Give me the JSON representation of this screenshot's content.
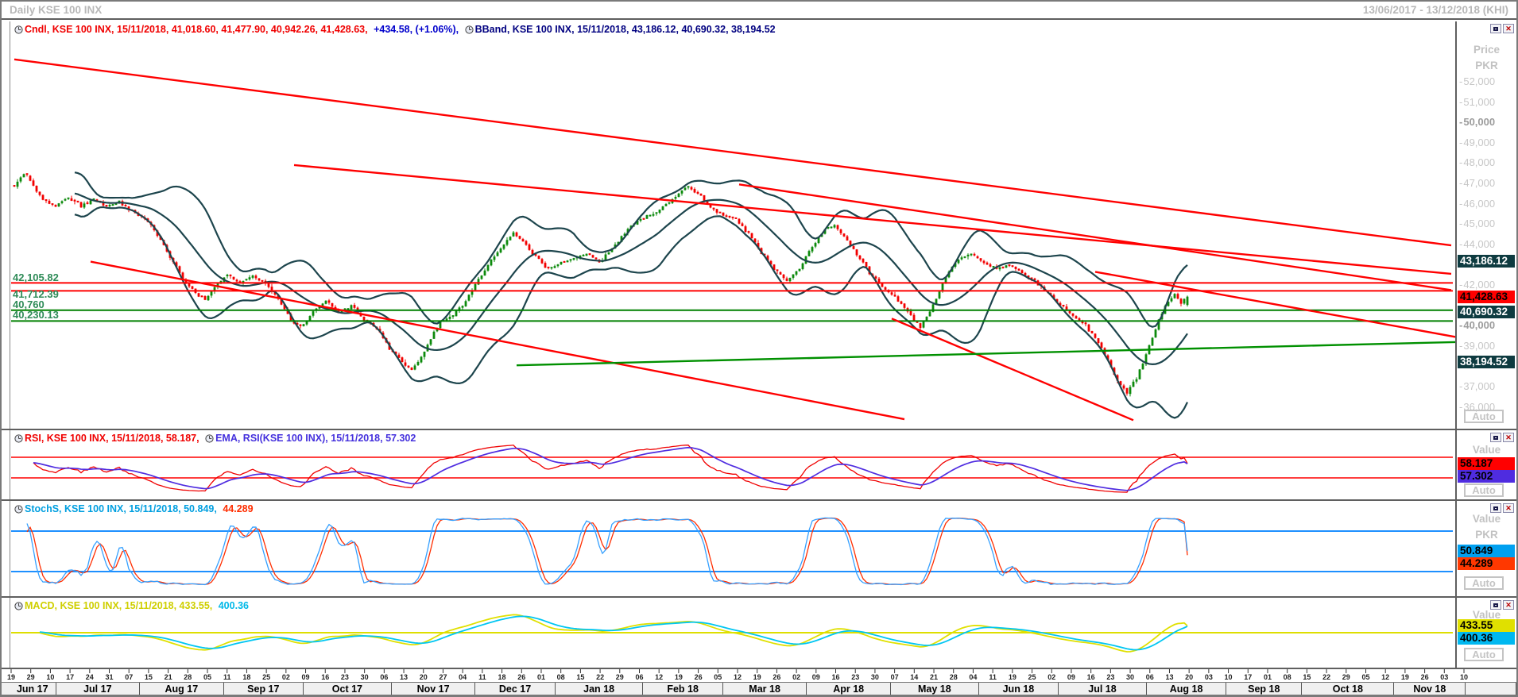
{
  "window": {
    "title": "Daily KSE 100 INX",
    "date_range": "13/06/2017 - 13/12/2018 (KHI)",
    "auto_label": "Auto"
  },
  "main_panel": {
    "legend": {
      "cndl": "Cndl, KSE 100 INX, 15/11/2018, 41,018.60, 41,477.90, 40,942.26, 41,428.63,",
      "change": "+434.58, (+1.06%),",
      "bband": "BBand, KSE 100 INX, 15/11/2018, 43,186.12, 40,690.32, 38,194.52"
    },
    "axis_header_line1": "Price",
    "axis_header_line2": "PKR",
    "ticks": [
      {
        "price": 52000,
        "label": "52,000"
      },
      {
        "price": 51000,
        "label": "51,000"
      },
      {
        "price": 50000,
        "label": "50,000",
        "bold": true
      },
      {
        "price": 49000,
        "label": "49,000"
      },
      {
        "price": 48000,
        "label": "48,000"
      },
      {
        "price": 47000,
        "label": "47,000"
      },
      {
        "price": 46000,
        "label": "46,000"
      },
      {
        "price": 45000,
        "label": "45,000"
      },
      {
        "price": 44000,
        "label": "44,000"
      },
      {
        "price": 42000,
        "label": "42,000"
      },
      {
        "price": 40000,
        "label": "40,000",
        "bold": true
      },
      {
        "price": 39000,
        "label": "39,000"
      },
      {
        "price": 37000,
        "label": "37,000"
      },
      {
        "price": 36000,
        "label": "36,000"
      }
    ],
    "value_boxes": [
      {
        "value": "43,186.12",
        "price": 43186.12,
        "bg": "#0e3b40",
        "fg": "#ffffff"
      },
      {
        "value": "41,428.63",
        "price": 41428.63,
        "bg": "#ff0000",
        "fg": "#000000"
      },
      {
        "value": "40,690.32",
        "price": 40690.32,
        "bg": "#0e3b40",
        "fg": "#ffffff"
      },
      {
        "value": "38,194.52",
        "price": 38194.52,
        "bg": "#0e3b40",
        "fg": "#ffffff"
      }
    ]
  },
  "rsi_panel": {
    "legend": {
      "rsi": "RSI, KSE 100 INX, 15/11/2018, 58.187,",
      "ema": "EMA, RSI(KSE 100 INX), 15/11/2018, 57.302"
    },
    "value_header": "Value",
    "boxes": [
      {
        "value": "58.187",
        "bg": "#ff0000",
        "fg": "#000000"
      },
      {
        "value": "57.302",
        "bg": "#4f2ce0",
        "fg": "#000000"
      }
    ]
  },
  "stoch_panel": {
    "legend": {
      "main": "StochS, KSE 100 INX, 15/11/2018, 50.849,",
      "d": "44.289"
    },
    "value_header": "Value",
    "value_header2": "PKR",
    "boxes": [
      {
        "value": "50.849",
        "bg": "#00a0f0",
        "fg": "#000000"
      },
      {
        "value": "44.289",
        "bg": "#ff3800",
        "fg": "#000000"
      }
    ]
  },
  "macd_panel": {
    "legend": {
      "macd": "MACD, KSE 100 INX, 15/11/2018, 433.55,",
      "signal": "400.36"
    },
    "value_header": "Value",
    "boxes": [
      {
        "value": "433.55",
        "bg": "#e0e000",
        "fg": "#000000"
      },
      {
        "value": "400.36",
        "bg": "#00b8f0",
        "fg": "#000000"
      }
    ]
  },
  "x_axis": {
    "day_ticks": [
      "19",
      "29",
      "10",
      "17",
      "24",
      "31",
      "07",
      "15",
      "21",
      "28",
      "05",
      "11",
      "18",
      "25",
      "02",
      "09",
      "16",
      "23",
      "30",
      "06",
      "13",
      "20",
      "27",
      "04",
      "11",
      "18",
      "26",
      "01",
      "08",
      "15",
      "22",
      "29",
      "06",
      "12",
      "19",
      "26",
      "05",
      "12",
      "19",
      "26",
      "02",
      "09",
      "16",
      "23",
      "30",
      "07",
      "14",
      "21",
      "28",
      "04",
      "11",
      "19",
      "25",
      "02",
      "09",
      "16",
      "23",
      "30",
      "06",
      "13",
      "20",
      "03",
      "10",
      "17",
      "01",
      "08",
      "15",
      "22",
      "29",
      "05",
      "12",
      "19",
      "26",
      "03",
      "10"
    ],
    "months": [
      {
        "label": "Jun 17",
        "weight": 0.55
      },
      {
        "label": "Jul 17",
        "weight": 1
      },
      {
        "label": "Aug 17",
        "weight": 1
      },
      {
        "label": "Sep 17",
        "weight": 0.95
      },
      {
        "label": "Oct 17",
        "weight": 1.05
      },
      {
        "label": "Nov 17",
        "weight": 1
      },
      {
        "label": "Dec 17",
        "weight": 0.95
      },
      {
        "label": "Jan 18",
        "weight": 1.05
      },
      {
        "label": "Feb 18",
        "weight": 0.95
      },
      {
        "label": "Mar 18",
        "weight": 1
      },
      {
        "label": "Apr 18",
        "weight": 1
      },
      {
        "label": "May 18",
        "weight": 1.05
      },
      {
        "label": "Jun 18",
        "weight": 0.95
      },
      {
        "label": "Jul 18",
        "weight": 1.05
      },
      {
        "label": "Aug 18",
        "weight": 0.95
      },
      {
        "label": "Sep 18",
        "weight": 0.9
      },
      {
        "label": "Oct 18",
        "weight": 1.1
      },
      {
        "label": "Nov 18",
        "weight": 0.85
      },
      {
        "label": "",
        "weight": 0.6
      }
    ]
  },
  "chart_data": {
    "type": "candlestick",
    "title": "Daily KSE 100 INX",
    "instrument": "KSE 100 INX",
    "date": "15/11/2018",
    "period_shown": "13/06/2017 - 13/12/2018",
    "price_axis": {
      "min": 35050,
      "max": 54890,
      "tick_interval": 1000,
      "unit": "PKR"
    },
    "num_candles": 370,
    "last_candle": {
      "open": 41018.6,
      "high": 41477.9,
      "low": 40942.26,
      "close": 41428.63,
      "change": 434.58,
      "change_pct": 1.06
    },
    "bollinger": {
      "period": 20,
      "stdev": 2,
      "upper_last": 43186.12,
      "middle_last": 40690.32,
      "lower_last": 38194.52
    },
    "close_anchors": [
      [
        0,
        46900
      ],
      [
        3,
        47500
      ],
      [
        6,
        46900
      ],
      [
        9,
        46200
      ],
      [
        13,
        45900
      ],
      [
        17,
        46300
      ],
      [
        21,
        45900
      ],
      [
        25,
        46200
      ],
      [
        29,
        45800
      ],
      [
        33,
        46100
      ],
      [
        37,
        45600
      ],
      [
        41,
        45300
      ],
      [
        45,
        44500
      ],
      [
        49,
        43400
      ],
      [
        53,
        42300
      ],
      [
        57,
        41600
      ],
      [
        60,
        41300
      ],
      [
        63,
        41900
      ],
      [
        67,
        42500
      ],
      [
        71,
        42100
      ],
      [
        75,
        42500
      ],
      [
        79,
        42100
      ],
      [
        83,
        41300
      ],
      [
        87,
        40300
      ],
      [
        90,
        39900
      ],
      [
        94,
        40700
      ],
      [
        98,
        41200
      ],
      [
        102,
        40600
      ],
      [
        106,
        41000
      ],
      [
        110,
        40300
      ],
      [
        114,
        39900
      ],
      [
        118,
        38900
      ],
      [
        122,
        38200
      ],
      [
        125,
        37800
      ],
      [
        128,
        38400
      ],
      [
        131,
        39400
      ],
      [
        134,
        40200
      ],
      [
        138,
        40500
      ],
      [
        142,
        41200
      ],
      [
        146,
        42300
      ],
      [
        150,
        43200
      ],
      [
        154,
        44000
      ],
      [
        157,
        44550
      ],
      [
        160,
        44100
      ],
      [
        164,
        43400
      ],
      [
        168,
        42750
      ],
      [
        172,
        43100
      ],
      [
        176,
        43300
      ],
      [
        180,
        43600
      ],
      [
        184,
        43100
      ],
      [
        188,
        43800
      ],
      [
        192,
        44600
      ],
      [
        196,
        45200
      ],
      [
        200,
        45400
      ],
      [
        204,
        45800
      ],
      [
        208,
        46300
      ],
      [
        212,
        46850
      ],
      [
        215,
        46500
      ],
      [
        219,
        45800
      ],
      [
        223,
        45450
      ],
      [
        227,
        45200
      ],
      [
        231,
        44500
      ],
      [
        235,
        43600
      ],
      [
        239,
        42800
      ],
      [
        243,
        42200
      ],
      [
        247,
        42800
      ],
      [
        251,
        43900
      ],
      [
        255,
        44700
      ],
      [
        258,
        44900
      ],
      [
        262,
        44200
      ],
      [
        266,
        43300
      ],
      [
        270,
        42400
      ],
      [
        274,
        41800
      ],
      [
        278,
        41200
      ],
      [
        282,
        40500
      ],
      [
        285,
        39900
      ],
      [
        289,
        41000
      ],
      [
        293,
        42400
      ],
      [
        297,
        43300
      ],
      [
        301,
        43500
      ],
      [
        305,
        43100
      ],
      [
        309,
        42800
      ],
      [
        313,
        43000
      ],
      [
        317,
        42600
      ],
      [
        321,
        42200
      ],
      [
        325,
        41600
      ],
      [
        329,
        41000
      ],
      [
        333,
        40500
      ],
      [
        337,
        40000
      ],
      [
        341,
        39200
      ],
      [
        344,
        38300
      ],
      [
        347,
        37300
      ],
      [
        350,
        36700
      ],
      [
        353,
        37400
      ],
      [
        356,
        38600
      ],
      [
        359,
        39900
      ],
      [
        362,
        41000
      ],
      [
        365,
        41600
      ],
      [
        367,
        41100
      ],
      [
        369,
        41428.63
      ]
    ],
    "horizontal_lines": [
      {
        "label": "42,105.82",
        "price": 42105.82,
        "color": "#ff0000"
      },
      {
        "label": "41,712.39",
        "price": 41712.39,
        "color": "#ff0000"
      },
      {
        "label": "40,760",
        "price": 40760,
        "color": "#008000"
      },
      {
        "label": "40,230.13",
        "price": 40230.13,
        "color": "#008000"
      }
    ],
    "trendlines": {
      "red": [
        [
          [
            0,
            53100
          ],
          [
            452,
            43950
          ]
        ],
        [
          [
            88,
            47900
          ],
          [
            452,
            42550
          ]
        ],
        [
          [
            228,
            46950
          ],
          [
            452,
            41750
          ]
        ],
        [
          [
            24,
            43150
          ],
          [
            280,
            35400
          ]
        ],
        [
          [
            276,
            40350
          ],
          [
            352,
            35350
          ]
        ],
        [
          [
            340,
            42650
          ],
          [
            455,
            39400
          ]
        ]
      ],
      "green": [
        [
          [
            158,
            38050
          ],
          [
            455,
            39200
          ]
        ]
      ]
    },
    "rsi": {
      "period": 14,
      "last": 58.187,
      "ema_period": 14,
      "ema_last": 57.302,
      "rails": [
        70,
        30
      ],
      "range": [
        0,
        100
      ],
      "colors": {
        "rsi": "#f00000",
        "ema": "#4f2ce0",
        "rail": "#ff0000"
      }
    },
    "stoch": {
      "k_period": 14,
      "slow_last": 50.849,
      "d_last": 44.289,
      "rails": [
        80,
        20
      ],
      "range": [
        0,
        100
      ],
      "colors": {
        "k": "#35a0ff",
        "d": "#ff2d00",
        "rail": "#1e90ff"
      }
    },
    "macd": {
      "fast": 12,
      "slow": 26,
      "signal": 9,
      "macd_last": 433.55,
      "signal_last": 400.36,
      "zero_line": 0,
      "colors": {
        "macd": "#e0e000",
        "signal": "#00c6f2",
        "rail": "#dede00"
      }
    },
    "candle_colors": {
      "up": "#0c8a0c",
      "down": "#f20000",
      "bollinger": "#1d454d"
    }
  }
}
